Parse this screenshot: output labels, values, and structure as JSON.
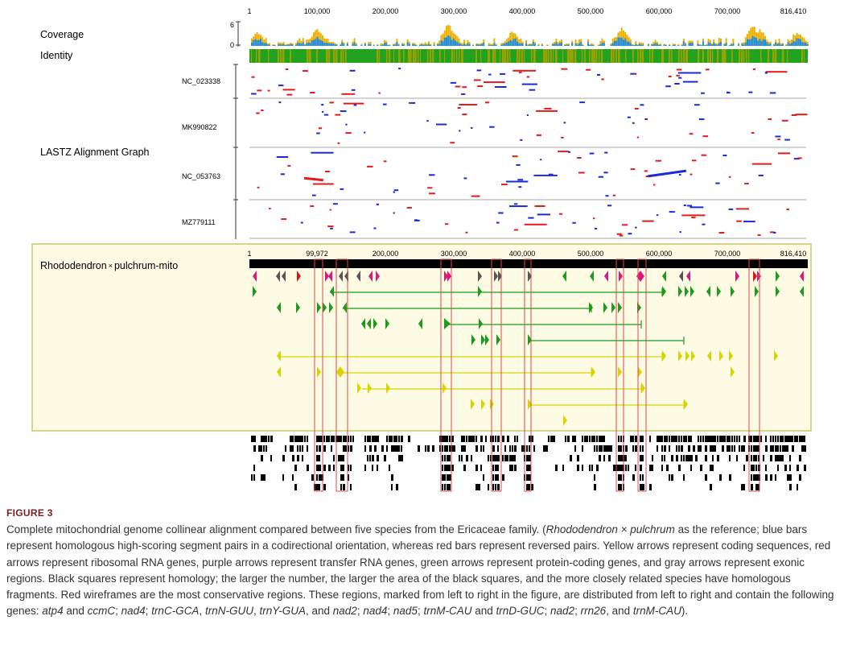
{
  "figure": {
    "axis_ticks_top": [
      "1",
      "100,000",
      "200,000",
      "300,000",
      "400,000",
      "500,000",
      "600,000",
      "700,000",
      "816,410"
    ],
    "axis_ticks_bottom": [
      "1",
      "99,972",
      "200,000",
      "300,000",
      "400,000",
      "500,000",
      "600,000",
      "700,000",
      "816,410"
    ],
    "coverage_label": "Coverage",
    "coverage_axis_max": "6",
    "coverage_axis_min": "0",
    "identity_label": "Identity",
    "lastz_label": "LASTZ Alignment Graph",
    "species": [
      "NC_023338",
      "MK990822",
      "NC_053763",
      "MZ779111"
    ],
    "reference_name_part1": "Rhododendron",
    "reference_symbol": "×",
    "reference_name_part2": "pulchrum-mito",
    "colors": {
      "coverage_blue": "#1f8de0",
      "coverage_gold": "#f0b000",
      "identity_green": "#22a31f",
      "identity_olive": "#9ea000",
      "forward": "#1a2bd6",
      "reverse": "#e01c1c",
      "track_background": "#fdfbe3",
      "coding_yellow": "#d8d400",
      "protein_green": "#1e9a1e",
      "trna_magenta": "#d6187f",
      "rrna_red": "#d81818",
      "exon_gray": "#555555",
      "wireframe_red": "#e04848"
    }
  },
  "caption": {
    "label": "FIGURE 3",
    "segments": [
      {
        "t": "Complete mitochondrial genome collinear alignment compared between five species from the Ericaceae family. ("
      },
      {
        "t": "Rhododendron × pulchrum",
        "i": true
      },
      {
        "t": " as the reference; blue bars represent homologous high-scoring segment pairs in a codirectional orientation, whereas red bars represent reversed pairs. Yellow arrows represent coding sequences, red arrows represent ribosomal RNA genes, purple arrows represent transfer RNA genes, green arrows represent protein-coding genes, and gray arrows represent exonic regions. Black squares represent homology; the larger the number, the larger the area of the black squares, and the more closely related species have homologous fragments. Red wireframes are the most conservative regions. These regions, marked from left to right in the figure, are distributed from left to right and contain the following genes: "
      },
      {
        "t": "atp4",
        "i": true
      },
      {
        "t": " and "
      },
      {
        "t": "ccmC",
        "i": true
      },
      {
        "t": "; "
      },
      {
        "t": "nad4",
        "i": true
      },
      {
        "t": "; "
      },
      {
        "t": "trnC-GCA",
        "i": true
      },
      {
        "t": ", "
      },
      {
        "t": "trnN-GUU",
        "i": true
      },
      {
        "t": ", "
      },
      {
        "t": "trnY-GUA",
        "i": true
      },
      {
        "t": ", and "
      },
      {
        "t": "nad2",
        "i": true
      },
      {
        "t": "; "
      },
      {
        "t": "nad4",
        "i": true
      },
      {
        "t": "; "
      },
      {
        "t": "nad5",
        "i": true
      },
      {
        "t": "; "
      },
      {
        "t": "trnM-CAU",
        "i": true
      },
      {
        "t": " and "
      },
      {
        "t": "trnD-GUC",
        "i": true
      },
      {
        "t": "; "
      },
      {
        "t": "nad2",
        "i": true
      },
      {
        "t": "; "
      },
      {
        "t": "rrn26",
        "i": true
      },
      {
        "t": ", and "
      },
      {
        "t": "trnM-CAU",
        "i": true
      },
      {
        "t": ")."
      }
    ]
  }
}
